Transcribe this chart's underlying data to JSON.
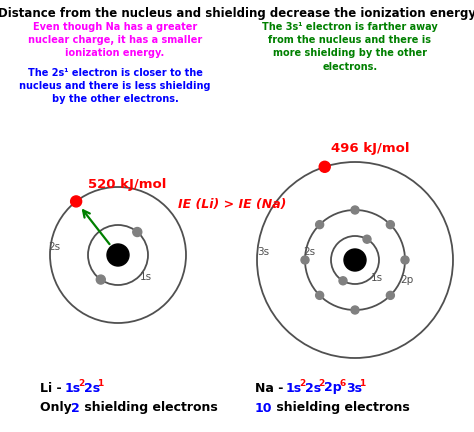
{
  "title": "Distance from the nucleus and shielding decrease the ionization energy",
  "bg_color": "#ffffff",
  "black": "#000000",
  "red": "#ff0000",
  "green": "#008000",
  "blue": "#0000ff",
  "magenta": "#ff00ff",
  "gray": "#808080",
  "dark_gray": "#505050",
  "li_text1": "Even though Na has a greater\nnuclear charge, it has a smaller\nionization energy.",
  "li_text2": "The 2s¹ electron is closer to the\nnucleus and there is less shielding\nby the other electrons.",
  "na_text": "The 3s¹ electron is farther away\nfrom the nucleus and there is\nmore shielding by the other\nelectrons.",
  "ie_compare": "IE (Li) > IE (Na)",
  "li_energy": "520 kJ/mol",
  "na_energy": "496 kJ/mol"
}
